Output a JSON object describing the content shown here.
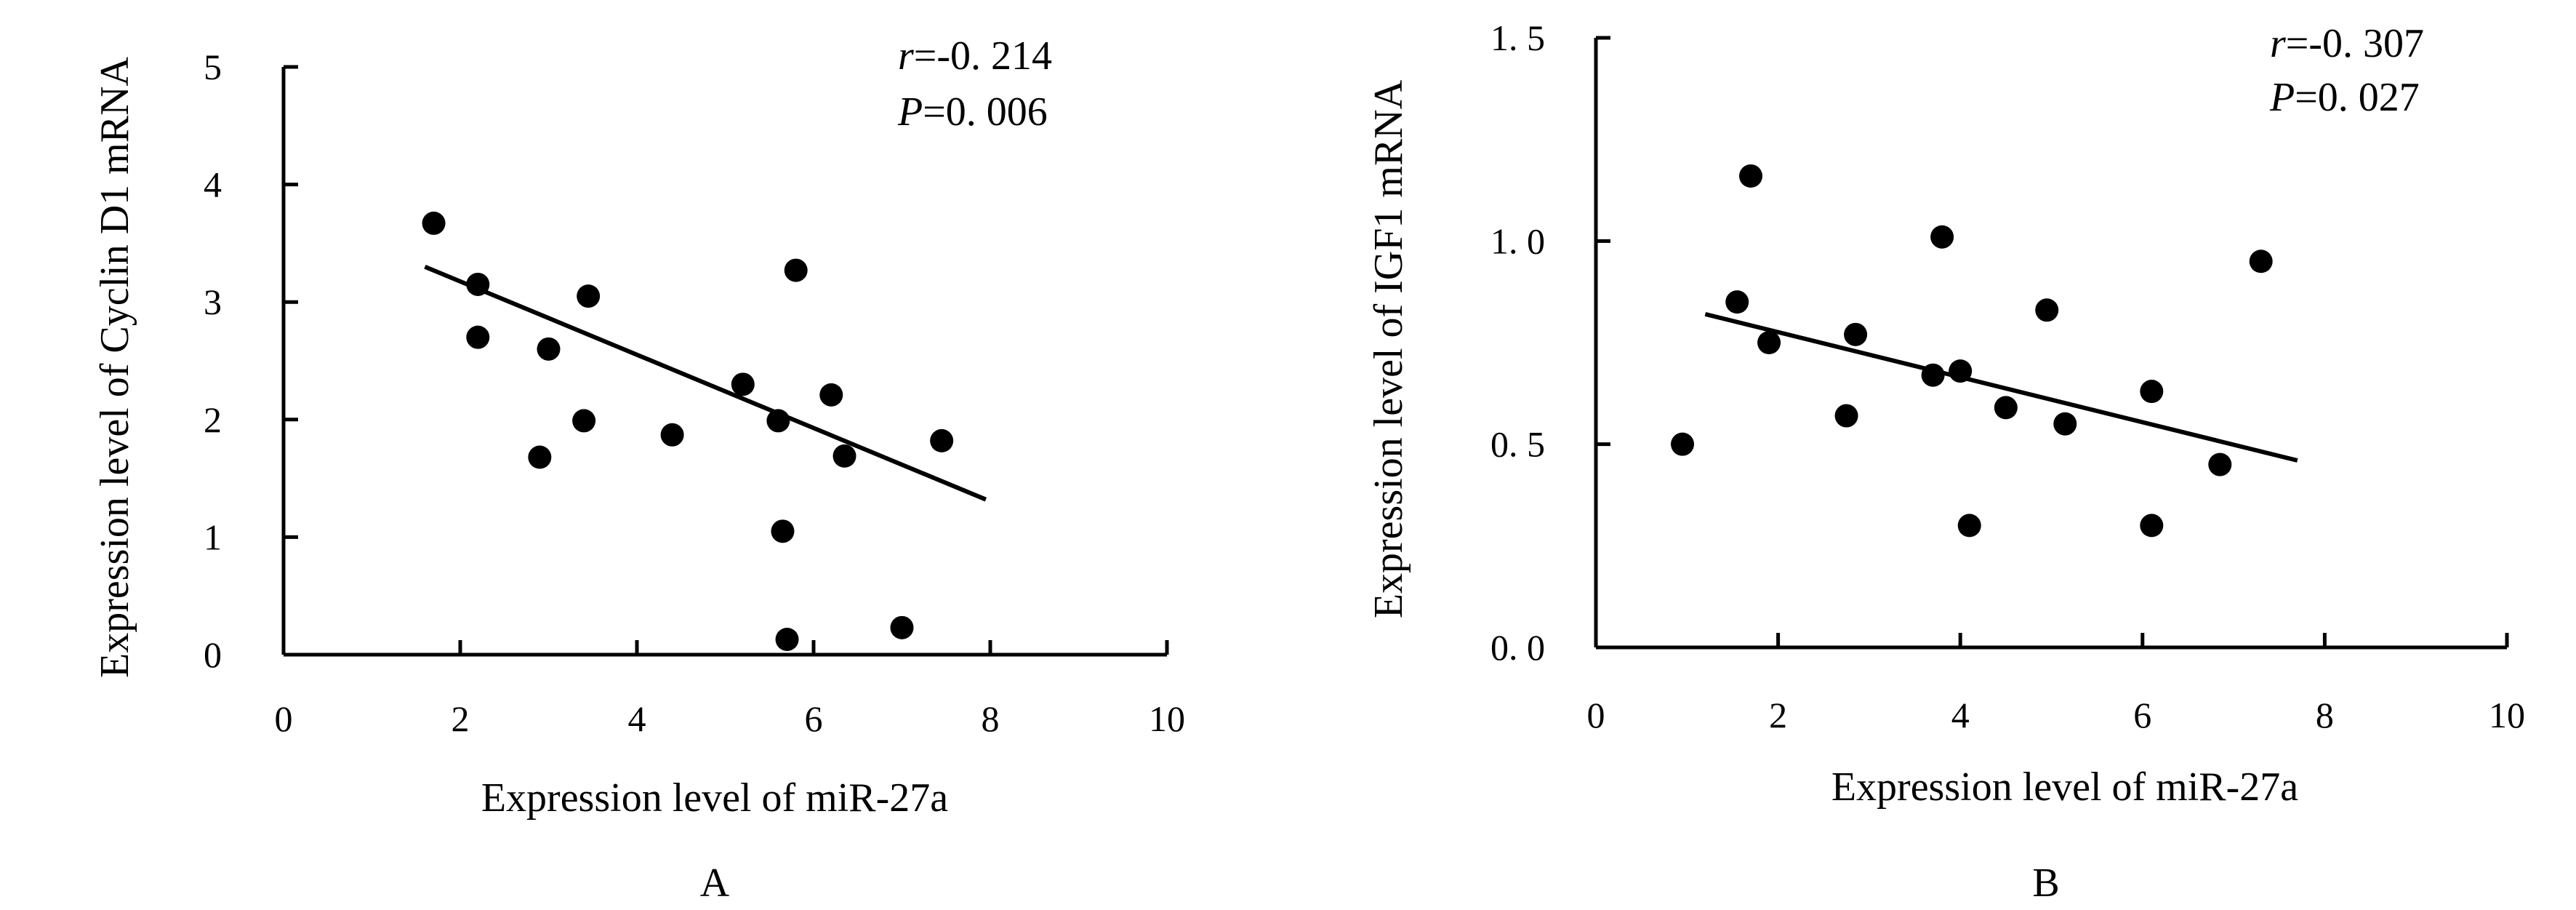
{
  "chart_data": [
    {
      "type": "scatter",
      "panel_label": "A",
      "xlabel": "Expression level of miR-27a",
      "ylabel": "Expression level of Cyclin D1 mRNA",
      "xlim": [
        0,
        10
      ],
      "ylim": [
        0,
        5
      ],
      "x_ticks": [
        0,
        2,
        4,
        6,
        8,
        10
      ],
      "y_ticks": [
        0,
        1,
        2,
        3,
        4,
        5
      ],
      "x_tick_labels": [
        "0",
        "2",
        "4",
        "6",
        "8",
        "10"
      ],
      "y_tick_labels": [
        "0",
        "1",
        "2",
        "3",
        "4",
        "5"
      ],
      "stat_r_symbol": "r",
      "stat_r_value": "=-0. 214",
      "stat_p_symbol": "P",
      "stat_p_value": "=0. 006",
      "points": [
        {
          "x": 1.7,
          "y": 3.67
        },
        {
          "x": 2.2,
          "y": 3.15
        },
        {
          "x": 2.2,
          "y": 2.7
        },
        {
          "x": 2.9,
          "y": 1.68
        },
        {
          "x": 3.0,
          "y": 2.6
        },
        {
          "x": 3.4,
          "y": 1.99
        },
        {
          "x": 3.45,
          "y": 3.05
        },
        {
          "x": 4.4,
          "y": 1.87
        },
        {
          "x": 5.2,
          "y": 2.3
        },
        {
          "x": 5.6,
          "y": 1.99
        },
        {
          "x": 5.65,
          "y": 1.05
        },
        {
          "x": 5.7,
          "y": 0.13
        },
        {
          "x": 5.8,
          "y": 3.27
        },
        {
          "x": 6.2,
          "y": 2.21
        },
        {
          "x": 6.35,
          "y": 1.69
        },
        {
          "x": 7.0,
          "y": 0.23
        },
        {
          "x": 7.45,
          "y": 1.82
        }
      ],
      "fit_line": {
        "x": [
          1.6,
          7.95
        ],
        "y": [
          3.3,
          1.32
        ]
      }
    },
    {
      "type": "scatter",
      "panel_label": "B",
      "xlabel": "Expression level of miR-27a",
      "ylabel": "Expression level of IGF1 mRNA",
      "xlim": [
        0,
        10
      ],
      "ylim": [
        0,
        1.5
      ],
      "x_ticks": [
        0,
        2,
        4,
        6,
        8,
        10
      ],
      "y_ticks": [
        0,
        0.5,
        1.0,
        1.5
      ],
      "x_tick_labels": [
        "0",
        "2",
        "4",
        "6",
        "8",
        "10"
      ],
      "y_tick_labels": [
        "0. 0",
        "0. 5",
        "1. 0",
        "1. 5"
      ],
      "stat_r_symbol": "r",
      "stat_r_value": "=-0. 307",
      "stat_p_symbol": "P",
      "stat_p_value": "=0. 027",
      "points": [
        {
          "x": 0.95,
          "y": 0.5
        },
        {
          "x": 1.55,
          "y": 0.85
        },
        {
          "x": 1.7,
          "y": 1.16
        },
        {
          "x": 1.9,
          "y": 0.75
        },
        {
          "x": 2.75,
          "y": 0.57
        },
        {
          "x": 2.85,
          "y": 0.77
        },
        {
          "x": 3.7,
          "y": 0.67
        },
        {
          "x": 3.8,
          "y": 1.01
        },
        {
          "x": 4.0,
          "y": 0.68
        },
        {
          "x": 4.1,
          "y": 0.3
        },
        {
          "x": 4.5,
          "y": 0.59
        },
        {
          "x": 4.95,
          "y": 0.83
        },
        {
          "x": 5.15,
          "y": 0.55
        },
        {
          "x": 6.1,
          "y": 0.63
        },
        {
          "x": 6.1,
          "y": 0.3
        },
        {
          "x": 6.85,
          "y": 0.45
        },
        {
          "x": 7.3,
          "y": 0.95
        }
      ],
      "fit_line": {
        "x": [
          1.2,
          7.7
        ],
        "y": [
          0.82,
          0.46
        ]
      }
    }
  ]
}
